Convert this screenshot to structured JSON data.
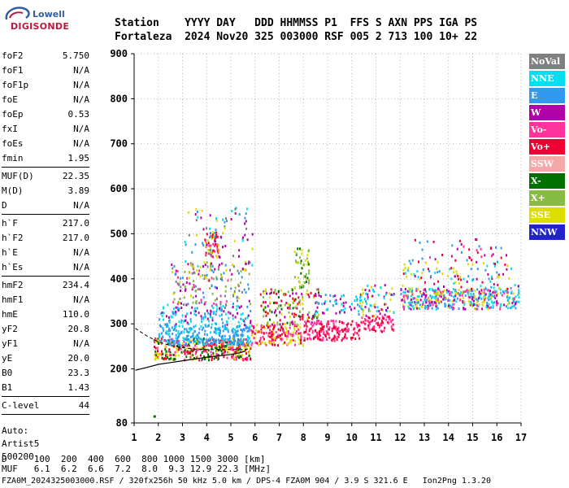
{
  "logo": {
    "line1": "Lowell",
    "line2": "DIGISONDE"
  },
  "header": {
    "line1": "Station    YYYY DAY   DDD HHMMSS P1  FFS S AXN PPS IGA PS",
    "line2": "Fortaleza  2024 Nov20 325 003000 RSF 005 2 713 100 10+ 22"
  },
  "params": {
    "group1": [
      {
        "name": "foF2",
        "value": "5.750"
      },
      {
        "name": "foF1",
        "value": "N/A"
      },
      {
        "name": "foF1p",
        "value": "N/A"
      },
      {
        "name": "foE",
        "value": "N/A"
      },
      {
        "name": "foEp",
        "value": "0.53"
      },
      {
        "name": "fxI",
        "value": "N/A"
      },
      {
        "name": "foEs",
        "value": "N/A"
      },
      {
        "name": "fmin",
        "value": "1.95"
      }
    ],
    "group2": [
      {
        "name": "MUF(D)",
        "value": "22.35"
      },
      {
        "name": "M(D)",
        "value": "3.89"
      },
      {
        "name": "D",
        "value": "N/A"
      }
    ],
    "group3": [
      {
        "name": "h`F",
        "value": "217.0"
      },
      {
        "name": "h`F2",
        "value": "217.0"
      },
      {
        "name": "h`E",
        "value": "N/A"
      },
      {
        "name": "h`Es",
        "value": "N/A"
      }
    ],
    "group4": [
      {
        "name": "hmF2",
        "value": "234.4"
      },
      {
        "name": "hmF1",
        "value": "N/A"
      },
      {
        "name": "hmE",
        "value": "110.0"
      },
      {
        "name": "yF2",
        "value": "20.8"
      },
      {
        "name": "yF1",
        "value": "N/A"
      },
      {
        "name": "yE",
        "value": "20.0"
      },
      {
        "name": "B0",
        "value": "23.3"
      },
      {
        "name": "B1",
        "value": "1.43"
      }
    ],
    "group5": [
      {
        "name": "C-level",
        "value": "44"
      }
    ],
    "auto": [
      "Auto:",
      "Artist5",
      "500200"
    ]
  },
  "legend": [
    {
      "label": "NoVal",
      "color": "#808080"
    },
    {
      "label": "NNE",
      "color": "#00e0f0"
    },
    {
      "label": "E",
      "color": "#3399ee"
    },
    {
      "label": "W",
      "color": "#b000a8"
    },
    {
      "label": "Vo-",
      "color": "#ff3399"
    },
    {
      "label": "Vo+",
      "color": "#ee0033"
    },
    {
      "label": "SSW",
      "color": "#f4a8a8"
    },
    {
      "label": "X-",
      "color": "#007000"
    },
    {
      "label": "X+",
      "color": "#88bb44"
    },
    {
      "label": "SSE",
      "color": "#dddd00"
    },
    {
      "label": "NNW",
      "color": "#2222cc"
    }
  ],
  "footer": {
    "line1": "D     100  200  400  600  800 1000 1500 3000 [km]",
    "line2": "MUF   6.1  6.2  6.6  7.2  8.0  9.3 12.9 22.3 [MHz]",
    "file": "FZA0M_2024325003000.RSF / 320fx256h 50 kHz 5.0 km / DPS-4 FZA0M 904 / 3.9 S 321.6 E   Ion2Png 1.3.20"
  },
  "chart_data": {
    "type": "scatter",
    "xlim": [
      1,
      17
    ],
    "ylim": [
      80,
      900
    ],
    "x_ticks": [
      1,
      2,
      3,
      4,
      5,
      6,
      7,
      8,
      9,
      10,
      11,
      12,
      13,
      14,
      15,
      16,
      17
    ],
    "y_ticks": [
      80,
      200,
      300,
      400,
      500,
      600,
      700,
      800,
      900
    ],
    "grid": "dotted",
    "traces": [
      {
        "name": "F2 trace lower",
        "x": [
          1.05,
          1.5,
          2.0,
          2.5,
          3.0,
          3.5,
          4.0,
          4.5,
          5.0,
          5.4,
          5.6
        ],
        "y": [
          197,
          203,
          210,
          214,
          218,
          222,
          226,
          229,
          232,
          236,
          240
        ]
      },
      {
        "name": "F2 trace upper",
        "x": [
          1.05,
          1.5,
          2.0,
          2.5,
          3.0,
          3.5,
          4.0,
          4.5,
          5.0,
          5.5,
          5.7
        ],
        "y": [
          290,
          274,
          260,
          252,
          247,
          244,
          243,
          243,
          243,
          243,
          244
        ]
      }
    ],
    "clusters": [
      {
        "x": [
          1.8,
          5.8
        ],
        "y": [
          222,
          270
        ],
        "colors": [
          "#ee0033",
          "#007000",
          "#dddd00",
          "#ff3399"
        ],
        "count": 420
      },
      {
        "x": [
          2.0,
          5.8
        ],
        "y": [
          255,
          300
        ],
        "colors": [
          "#3399ee",
          "#00e0f0",
          "#3399ee"
        ],
        "count": 260
      },
      {
        "x": [
          2.0,
          5.8
        ],
        "y": [
          300,
          345
        ],
        "colors": [
          "#b000a8",
          "#3399ee",
          "#00e0f0"
        ],
        "count": 140
      },
      {
        "x": [
          2.5,
          5.8
        ],
        "y": [
          345,
          440
        ],
        "colors": [
          "#3399ee",
          "#dddd00",
          "#b000a8",
          "#ff3399",
          "#88bb44",
          "#808080"
        ],
        "count": 170
      },
      {
        "x": [
          3.9,
          4.5
        ],
        "y": [
          450,
          510
        ],
        "colors": [
          "#ee0033",
          "#ff3399",
          "#dddd00"
        ],
        "count": 60
      },
      {
        "x": [
          3.0,
          5.9
        ],
        "y": [
          420,
          560
        ],
        "colors": [
          "#dddd00",
          "#3399ee",
          "#00e0f0",
          "#b000a8",
          "#808080"
        ],
        "count": 90
      },
      {
        "x": [
          5.8,
          8.0
        ],
        "y": [
          255,
          300
        ],
        "colors": [
          "#ee0033",
          "#ff3399",
          "#dddd00"
        ],
        "count": 170
      },
      {
        "x": [
          6.2,
          8.6
        ],
        "y": [
          300,
          380
        ],
        "colors": [
          "#dddd00",
          "#007000",
          "#ee0033",
          "#88bb44",
          "#b000a8"
        ],
        "count": 160
      },
      {
        "x": [
          7.6,
          8.2
        ],
        "y": [
          380,
          470
        ],
        "colors": [
          "#007000",
          "#dddd00",
          "#88bb44"
        ],
        "count": 50
      },
      {
        "x": [
          8.0,
          10.3
        ],
        "y": [
          265,
          310
        ],
        "colors": [
          "#ee0033",
          "#ff3399"
        ],
        "count": 170
      },
      {
        "x": [
          8.4,
          10.8
        ],
        "y": [
          320,
          370
        ],
        "colors": [
          "#3399ee",
          "#00e0f0",
          "#b000a8"
        ],
        "count": 70
      },
      {
        "x": [
          10.3,
          11.7
        ],
        "y": [
          285,
          320
        ],
        "colors": [
          "#ee0033",
          "#ff3399"
        ],
        "count": 70
      },
      {
        "x": [
          10.3,
          11.8
        ],
        "y": [
          320,
          390
        ],
        "colors": [
          "#dddd00",
          "#00e0f0",
          "#b000a8"
        ],
        "count": 60
      },
      {
        "x": [
          12.0,
          16.9
        ],
        "y": [
          335,
          380
        ],
        "colors": [
          "#00e0f0",
          "#b000a8",
          "#3399ee",
          "#dddd00",
          "#ff3399"
        ],
        "count": 420
      },
      {
        "x": [
          12.0,
          16.9
        ],
        "y": [
          380,
          445
        ],
        "colors": [
          "#3399ee",
          "#b000a8",
          "#dddd00",
          "#00e0f0",
          "#ee0033"
        ],
        "count": 110
      },
      {
        "x": [
          12.5,
          16.5
        ],
        "y": [
          445,
          490
        ],
        "colors": [
          "#ee0033",
          "#3399ee",
          "#ff3399",
          "#b000a8"
        ],
        "count": 35
      }
    ],
    "outliers": [
      {
        "x": 1.8,
        "y": 97,
        "color": "#007000"
      }
    ]
  }
}
